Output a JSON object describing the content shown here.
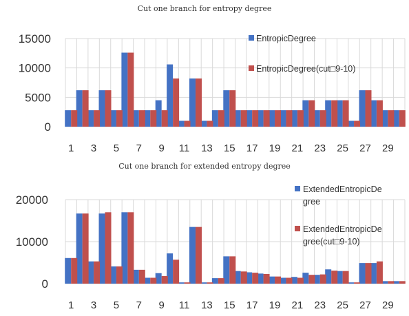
{
  "colors": {
    "blue": "#4472C4",
    "red": "#C0504D"
  },
  "chart_data": [
    {
      "type": "bar",
      "title": "Cut one branch for entropy degree",
      "categories": [
        "1",
        "2",
        "3",
        "4",
        "5",
        "6",
        "7",
        "8",
        "9",
        "10",
        "11",
        "12",
        "13",
        "14",
        "15",
        "16",
        "17",
        "18",
        "19",
        "20",
        "21",
        "22",
        "23",
        "24",
        "25",
        "26",
        "27",
        "28",
        "29",
        "30"
      ],
      "x_tick_labels": [
        "1",
        "3",
        "5",
        "7",
        "9",
        "11",
        "13",
        "15",
        "17",
        "19",
        "21",
        "23",
        "25",
        "27",
        "29"
      ],
      "ylim": [
        0,
        15000
      ],
      "y_ticks": [
        "0",
        "5000",
        "10000",
        "15000"
      ],
      "grid": true,
      "legend_position": "right",
      "series": [
        {
          "name": "EntropicDegree",
          "color": "#4472C4",
          "values": [
            2800,
            6200,
            2800,
            6200,
            2800,
            12600,
            2800,
            2800,
            4500,
            10600,
            1000,
            8200,
            1000,
            2800,
            6200,
            2800,
            2800,
            2800,
            2800,
            2800,
            2800,
            4500,
            2800,
            4500,
            4500,
            1000,
            6200,
            4500,
            2800,
            2800
          ]
        },
        {
          "name": "EntropicDegree(cut□9-10)",
          "color": "#C0504D",
          "values": [
            2800,
            6200,
            2800,
            6200,
            2800,
            12600,
            2800,
            2800,
            2800,
            8200,
            1000,
            8200,
            1000,
            2800,
            6200,
            2800,
            2800,
            2800,
            2800,
            2800,
            2800,
            4500,
            2800,
            4500,
            4500,
            1000,
            6200,
            4500,
            2800,
            2800
          ]
        }
      ]
    },
    {
      "type": "bar",
      "title": "Cut one branch for extended entropy degree",
      "categories": [
        "1",
        "2",
        "3",
        "4",
        "5",
        "6",
        "7",
        "8",
        "9",
        "10",
        "11",
        "12",
        "13",
        "14",
        "15",
        "16",
        "17",
        "18",
        "19",
        "20",
        "21",
        "22",
        "23",
        "24",
        "25",
        "26",
        "27",
        "28",
        "29",
        "30"
      ],
      "x_tick_labels": [
        "1",
        "3",
        "5",
        "7",
        "9",
        "11",
        "13",
        "15",
        "17",
        "19",
        "21",
        "23",
        "25",
        "27",
        "29"
      ],
      "ylim": [
        0,
        20000
      ],
      "y_ticks": [
        "0",
        "10000",
        "20000"
      ],
      "grid": true,
      "legend_position": "right",
      "series": [
        {
          "name": "ExtendedEntropicDegree",
          "legend_lines": [
            "ExtendedEntropicDe",
            "gree"
          ],
          "color": "#4472C4",
          "values": [
            6100,
            16700,
            5300,
            16700,
            4100,
            17000,
            3300,
            1400,
            2500,
            7200,
            300,
            13500,
            300,
            1300,
            6500,
            3000,
            2700,
            2400,
            1700,
            1400,
            1600,
            2600,
            2100,
            3400,
            3000,
            300,
            4900,
            4900,
            600,
            600
          ]
        },
        {
          "name": "ExtendedEntropicDegree(cut□9-10)",
          "legend_lines": [
            "ExtendedEntropicDe",
            "gree(cut□9-10)"
          ],
          "color": "#C0504D",
          "values": [
            6100,
            16700,
            5300,
            17000,
            4100,
            17000,
            3300,
            1400,
            1800,
            5700,
            300,
            13500,
            300,
            1300,
            6500,
            2900,
            2600,
            2300,
            1700,
            1400,
            1400,
            2100,
            2200,
            3100,
            3000,
            300,
            4900,
            5300,
            600,
            600
          ]
        }
      ]
    }
  ]
}
